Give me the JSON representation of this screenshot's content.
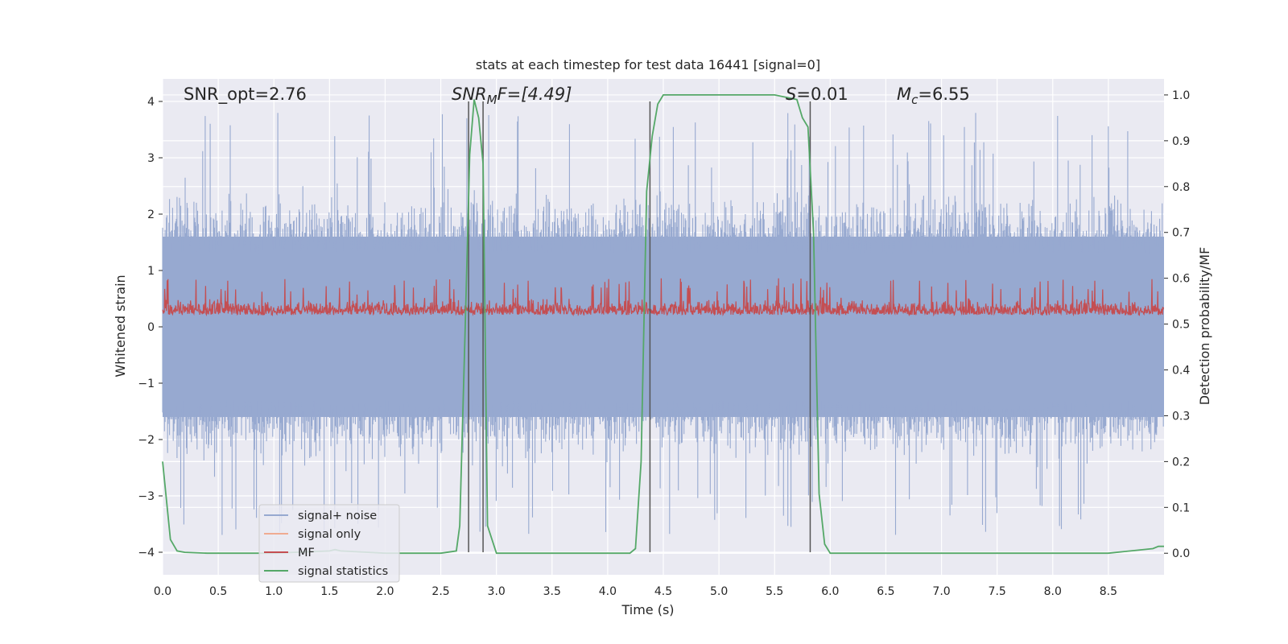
{
  "chart_data": {
    "type": "line",
    "title": "stats at each timestep for test data 16441 [signal=0]",
    "xlabel": "Time (s)",
    "ylabel": "Whitened strain",
    "y2label": "Detection probability/MF",
    "xlim": [
      0.0,
      9.0
    ],
    "ylim": [
      -4.4,
      4.4
    ],
    "y2lim": [
      -0.047,
      1.035
    ],
    "xticks": [
      "0.0",
      "0.5",
      "1.0",
      "1.5",
      "2.0",
      "2.5",
      "3.0",
      "3.5",
      "4.0",
      "4.5",
      "5.0",
      "5.5",
      "6.0",
      "6.5",
      "7.0",
      "7.5",
      "8.0",
      "8.5"
    ],
    "xtick_values": [
      0,
      0.5,
      1,
      1.5,
      2,
      2.5,
      3,
      3.5,
      4,
      4.5,
      5,
      5.5,
      6,
      6.5,
      7,
      7.5,
      8,
      8.5
    ],
    "yticks": [
      "4",
      "3",
      "2",
      "1",
      "0",
      "−1",
      "−2",
      "−3",
      "−4"
    ],
    "ytick_values": [
      4,
      3,
      2,
      1,
      0,
      -1,
      -2,
      -3,
      -4
    ],
    "y2ticks": [
      "1.0",
      "0.9",
      "0.8",
      "0.7",
      "0.6",
      "0.5",
      "0.4",
      "0.3",
      "0.2",
      "0.1",
      "0.0"
    ],
    "y2tick_values": [
      1.0,
      0.9,
      0.8,
      0.7,
      0.6,
      0.5,
      0.4,
      0.3,
      0.2,
      0.1,
      0.0
    ],
    "annotations": {
      "snr_opt": "SNR_opt=2.76",
      "snr_mf_prefix": "SNR",
      "snr_mf_sub": "M",
      "snr_mf_suffix": "F=[4.49]",
      "s_prefix": "S",
      "s_value": "=0.01",
      "mc_prefix": "M",
      "mc_sub": "c",
      "mc_value": "=6.55"
    },
    "vlines": [
      2.75,
      2.88,
      4.38,
      5.82
    ],
    "series": [
      {
        "name": "signal+ noise",
        "color": "#97a9d0",
        "axis": "left",
        "amplitude_range": [
          -4.0,
          4.0
        ],
        "typical_range": [
          -1.6,
          1.6
        ]
      },
      {
        "name": "signal only",
        "color": "#f0ab91",
        "axis": "left",
        "values": []
      },
      {
        "name": "MF",
        "color": "#c44e52",
        "axis": "right",
        "range": [
          0.5,
          0.6
        ]
      },
      {
        "name": "signal statistics",
        "color": "#55a868",
        "axis": "right",
        "x": [
          0.0,
          0.07,
          0.13,
          0.2,
          0.4,
          1.0,
          1.5,
          1.55,
          1.6,
          2.0,
          2.5,
          2.64,
          2.67,
          2.72,
          2.76,
          2.8,
          2.84,
          2.88,
          2.92,
          3.0,
          3.5,
          4.0,
          4.2,
          4.25,
          4.3,
          4.35,
          4.4,
          4.45,
          4.5,
          4.55,
          4.6,
          5.0,
          5.5,
          5.7,
          5.75,
          5.8,
          5.85,
          5.9,
          5.95,
          6.0,
          6.1,
          6.5,
          7.0,
          7.5,
          8.0,
          8.5,
          8.9,
          8.95,
          9.0
        ],
        "y": [
          0.2,
          0.03,
          0.005,
          0.002,
          0.0,
          0.0,
          0.005,
          0.008,
          0.005,
          0.0,
          0.0,
          0.005,
          0.06,
          0.5,
          0.87,
          0.99,
          0.95,
          0.85,
          0.06,
          0.0,
          0.0,
          0.0,
          0.0,
          0.01,
          0.2,
          0.79,
          0.91,
          0.98,
          1.0,
          1.0,
          1.0,
          1.0,
          1.0,
          0.99,
          0.95,
          0.93,
          0.7,
          0.13,
          0.02,
          0.0,
          0.0,
          0.0,
          0.0,
          0.0,
          0.0,
          0.0,
          0.01,
          0.015,
          0.015
        ]
      }
    ],
    "legend": {
      "placement": "lower-left",
      "entries": [
        "signal+ noise",
        "signal only",
        "MF",
        "signal statistics"
      ]
    },
    "grid": true,
    "colors": {
      "background": "#eaeaf2",
      "grid": "#ffffff",
      "vline": "#555555"
    }
  }
}
